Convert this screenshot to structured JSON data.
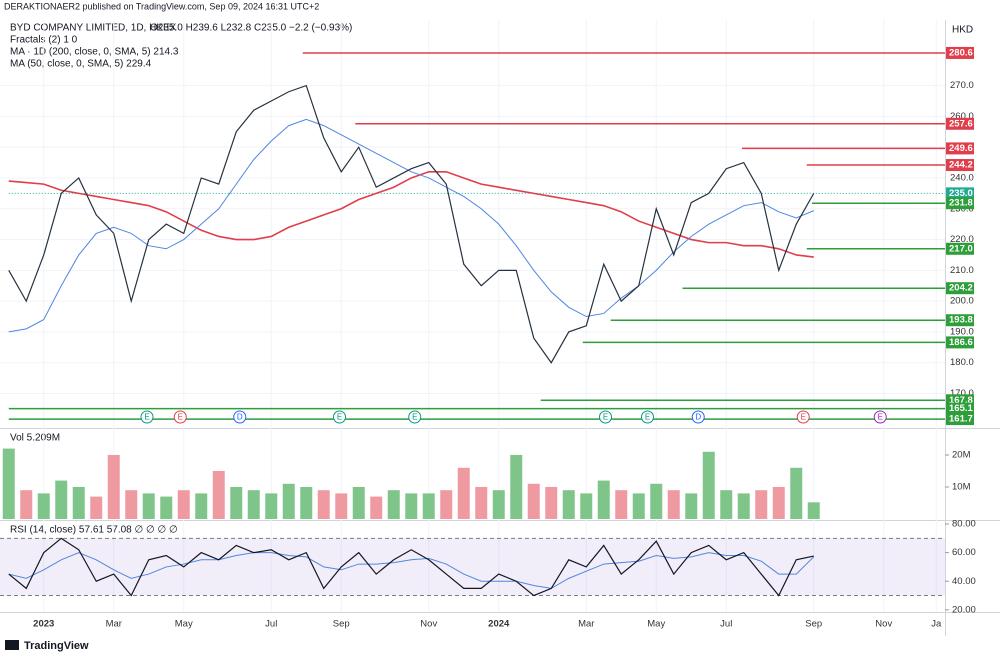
{
  "header": {
    "published": "DERAKTIONAER2 published on TradingView.com, Sep 09, 2024 16:31 UTC+2",
    "symbol": "BYD COMPANY LIMITED, 1D, HKEX",
    "ohlc": "O235.0 H239.6 L232.8 C235.0 −2.2 (−0.93%)",
    "fractals": "Fractals (2)  1  0",
    "ma200": "MA · 1D (200, close, 0, SMA, 5)  214.3",
    "ma50": "MA (50, close, 0, SMA, 5)  229.4",
    "currency": "HKD",
    "vol": "Vol  5.209M",
    "rsi": "RSI (14, close)  57.61  57.08  ∅  ∅  ∅  ∅",
    "brand": "TradingView"
  },
  "chart_data": [
    {
      "type": "line",
      "categories": [
        null,
        null,
        "2023",
        null,
        null,
        null,
        "Mar",
        null,
        null,
        null,
        "May",
        null,
        null,
        null,
        null,
        "Jul",
        null,
        null,
        null,
        "Sep",
        null,
        null,
        null,
        null,
        "Nov",
        null,
        null,
        null,
        "2024",
        null,
        null,
        null,
        null,
        "Mar",
        null,
        null,
        null,
        "May",
        null,
        null,
        null,
        "Jul",
        null,
        null,
        null,
        null,
        "Sep",
        null,
        null,
        null,
        "Nov",
        null,
        null,
        "Ja"
      ],
      "series": [
        {
          "name": "Price",
          "color": "#26323f",
          "values": [
            210,
            200,
            215,
            235,
            240,
            228,
            222,
            200,
            220,
            225,
            222,
            240,
            238,
            255,
            262,
            265,
            268,
            270,
            253,
            242,
            250,
            237,
            240,
            243,
            245,
            238,
            212,
            205,
            210,
            210,
            188,
            180,
            190,
            192,
            212,
            200,
            205,
            230,
            215,
            232,
            235,
            243,
            245,
            235,
            210,
            225,
            235,
            null,
            null,
            null,
            null,
            null,
            null,
            null
          ]
        },
        {
          "name": "MA 200",
          "color": "#e03e4b",
          "values": [
            239,
            238.5,
            238,
            236,
            235,
            234,
            233,
            232,
            231,
            229,
            226,
            223,
            221,
            220,
            220,
            221,
            224,
            226,
            228,
            230,
            233,
            235,
            237,
            240,
            242,
            242,
            240,
            238,
            237,
            236,
            235,
            234,
            233,
            232,
            231,
            229,
            226,
            224,
            222,
            220,
            219,
            219,
            218,
            218,
            217,
            215,
            214.3,
            null,
            null,
            null,
            null,
            null,
            null,
            null
          ]
        },
        {
          "name": "MA 50",
          "color": "#4f86e0",
          "values": [
            190,
            191,
            194,
            205,
            215,
            222,
            224,
            222,
            218,
            217,
            220,
            225,
            230,
            238,
            246,
            252,
            257,
            259,
            257,
            254,
            251,
            248,
            245,
            242,
            240,
            237,
            234,
            230,
            225,
            218,
            210,
            203,
            198,
            195,
            196,
            201,
            205,
            210,
            216,
            221,
            225,
            228,
            231,
            232,
            229,
            227,
            229.4,
            null,
            null,
            null,
            null,
            null,
            null,
            null
          ]
        }
      ],
      "ylim": [
        158.8,
        291.3
      ],
      "yticks": [
        {
          "value": 170,
          "label": "170.0"
        },
        {
          "value": 180,
          "label": "180.0"
        },
        {
          "value": 190,
          "label": "190.0"
        },
        {
          "value": 200,
          "label": "200.0"
        },
        {
          "value": 210,
          "label": "210.0"
        },
        {
          "value": 220,
          "label": "220.0"
        },
        {
          "value": 230,
          "label": "230.0"
        },
        {
          "value": 240,
          "label": "240.0"
        },
        {
          "value": 250,
          "label": "250.0"
        },
        {
          "value": 260,
          "label": "260.0"
        },
        {
          "value": 270,
          "label": "270.0"
        }
      ],
      "grid": true,
      "levels": [
        {
          "value": 280.6,
          "color": "#e03e4b",
          "from": 16.8
        },
        {
          "value": 257.6,
          "color": "#e03e4b",
          "from": 19.8
        },
        {
          "value": 249.6,
          "color": "#e03e4b",
          "from": 41.9
        },
        {
          "value": 244.2,
          "color": "#e03e4b",
          "from": 45.6
        },
        {
          "value": 235,
          "label": "235.0",
          "color": "#22ab94",
          "from": 0,
          "dotted": true
        },
        {
          "value": 231.8,
          "color": "#2e9e3a",
          "from": 45.9
        },
        {
          "value": 217,
          "label": "217.0",
          "color": "#2e9e3a",
          "from": 45.6
        },
        {
          "value": 204.2,
          "color": "#2e9e3a",
          "from": 38.5
        },
        {
          "value": 193.8,
          "color": "#2e9e3a",
          "from": 34.4
        },
        {
          "value": 186.6,
          "color": "#2e9e3a",
          "from": 32.8
        },
        {
          "value": 167.8,
          "color": "#2e9e3a",
          "from": 30.4
        },
        {
          "value": 165.1,
          "color": "#2e9e3a",
          "from": 0
        },
        {
          "value": 161.7,
          "color": "#2e9e3a",
          "from": 0
        }
      ],
      "events": [
        {
          "label": "E",
          "at": 7.9,
          "color": "#089981"
        },
        {
          "label": "E",
          "at": 9.8,
          "color": "#e03e4b"
        },
        {
          "label": "D",
          "at": 13.2,
          "color": "#2962ff"
        },
        {
          "label": "E",
          "at": 18.9,
          "color": "#089981"
        },
        {
          "label": "E",
          "at": 23.2,
          "color": "#089981"
        },
        {
          "label": "E",
          "at": 34.1,
          "color": "#089981"
        },
        {
          "label": "E",
          "at": 36.5,
          "color": "#089981"
        },
        {
          "label": "D",
          "at": 39.4,
          "color": "#2962ff"
        },
        {
          "label": "E",
          "at": 45.4,
          "color": "#e03e4b"
        },
        {
          "label": "E",
          "at": 49.8,
          "color": "#9c27b0"
        }
      ]
    },
    {
      "type": "volume",
      "series": [
        {
          "name": "Vol",
          "values": [
            22000000,
            9000000,
            8000000,
            12000000,
            10000000,
            7000000,
            20000000,
            9000000,
            8000000,
            7000000,
            9000000,
            8000000,
            15000000,
            10000000,
            9000000,
            8000000,
            11000000,
            10000000,
            9000000,
            8000000,
            10000000,
            7000000,
            9000000,
            8000000,
            8000000,
            9000000,
            16000000,
            10000000,
            9000000,
            20000000,
            11000000,
            10000000,
            9000000,
            8000000,
            12000000,
            9000000,
            8000000,
            11000000,
            9000000,
            8000000,
            21000000,
            9000000,
            8000000,
            9000000,
            10000000,
            16000000,
            5209000,
            null,
            null,
            null,
            null,
            null,
            null,
            null
          ]
        }
      ],
      "ylim": [
        0,
        27800000.0
      ],
      "yticks": [
        {
          "value": 10000000,
          "label": "10M"
        },
        {
          "value": 20000000,
          "label": "20M"
        }
      ]
    },
    {
      "type": "rsi",
      "series": [
        {
          "name": "RSI",
          "color": "#131722",
          "values": [
            45,
            35,
            60,
            70,
            62,
            40,
            45,
            30,
            55,
            58,
            50,
            60,
            55,
            65,
            60,
            62,
            55,
            60,
            35,
            50,
            60,
            45,
            55,
            62,
            55,
            45,
            35,
            35,
            45,
            40,
            30,
            35,
            55,
            50,
            65,
            45,
            55,
            68,
            45,
            60,
            65,
            55,
            60,
            45,
            30,
            55,
            57.61,
            null,
            null,
            null,
            null,
            null,
            null,
            null
          ]
        },
        {
          "name": "RSI MA",
          "color": "#4f86e0",
          "values": [
            45,
            42,
            48,
            55,
            60,
            55,
            48,
            42,
            45,
            50,
            52,
            55,
            55,
            58,
            60,
            60,
            58,
            57,
            50,
            48,
            52,
            52,
            53,
            55,
            56,
            52,
            45,
            40,
            40,
            40,
            37,
            35,
            42,
            47,
            52,
            53,
            54,
            58,
            56,
            57,
            60,
            58,
            58,
            54,
            45,
            45,
            57.08,
            null,
            null,
            null,
            null,
            null,
            null,
            null
          ]
        }
      ],
      "ylim": [
        18.5,
        82.8
      ],
      "yticks": [
        {
          "value": 20,
          "label": "20.00"
        },
        {
          "value": 40,
          "label": "40.00"
        },
        {
          "value": 60,
          "label": "60.00"
        },
        {
          "value": 80,
          "label": "80.00"
        }
      ],
      "bands": [
        30,
        70
      ]
    }
  ]
}
